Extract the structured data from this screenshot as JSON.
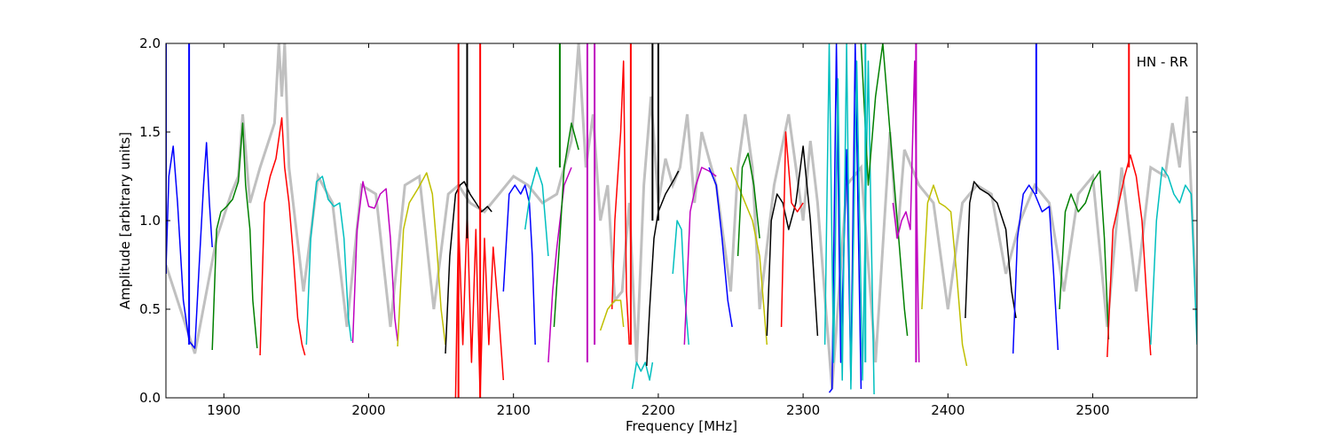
{
  "chart_data": {
    "type": "line",
    "title": "",
    "annotation": "HN - RR",
    "xlabel": "Frequency [MHz]",
    "ylabel": "Amplitude [arbitrary units]",
    "xlim": [
      1860,
      2572
    ],
    "ylim": [
      0.0,
      2.0
    ],
    "xticks": [
      1900,
      2000,
      2100,
      2200,
      2300,
      2400,
      2500
    ],
    "xtick_labels": [
      "1900",
      "2000",
      "2100",
      "2200",
      "2300",
      "2400",
      "2500"
    ],
    "yticks": [
      0.0,
      0.5,
      1.0,
      1.5,
      2.0
    ],
    "ytick_labels": [
      "0.0",
      "0.5",
      "1.0",
      "1.5",
      "2.0"
    ],
    "grid": false,
    "legend": "none",
    "background_series": {
      "name": "",
      "color": "#c0c0c0",
      "x": [
        1860,
        1880,
        1895,
        1905,
        1910,
        1913,
        1918,
        1925,
        1935,
        1938,
        1940,
        1942,
        1945,
        1955,
        1965,
        1975,
        1985,
        1995,
        2005,
        2015,
        2025,
        2035,
        2045,
        2055,
        2062,
        2070,
        2080,
        2090,
        2100,
        2110,
        2120,
        2130,
        2140,
        2145,
        2150,
        2155,
        2160,
        2165,
        2170,
        2175,
        2180,
        2185,
        2190,
        2195,
        2200,
        2205,
        2210,
        2215,
        2220,
        2225,
        2230,
        2240,
        2250,
        2255,
        2260,
        2265,
        2270,
        2280,
        2290,
        2300,
        2305,
        2310,
        2320,
        2330,
        2340,
        2350,
        2360,
        2365,
        2370,
        2380,
        2390,
        2400,
        2410,
        2420,
        2430,
        2440,
        2450,
        2460,
        2470,
        2480,
        2490,
        2500,
        2510,
        2520,
        2530,
        2540,
        2550,
        2555,
        2560,
        2565,
        2572
      ],
      "y": [
        0.75,
        0.25,
        0.9,
        1.15,
        1.25,
        1.6,
        1.1,
        1.3,
        1.55,
        2.0,
        1.7,
        2.0,
        1.3,
        0.6,
        1.25,
        1.1,
        0.4,
        1.2,
        1.15,
        0.4,
        1.2,
        1.25,
        0.5,
        1.15,
        1.2,
        1.1,
        1.05,
        1.15,
        1.25,
        1.2,
        1.1,
        1.15,
        1.45,
        2.0,
        1.3,
        1.6,
        1.0,
        1.2,
        0.55,
        0.6,
        1.1,
        0.2,
        1.2,
        1.7,
        1.1,
        1.35,
        1.2,
        1.3,
        1.6,
        1.1,
        1.5,
        1.2,
        0.6,
        1.3,
        1.6,
        1.3,
        0.5,
        1.2,
        1.6,
        1.0,
        1.45,
        1.1,
        0.05,
        1.2,
        1.3,
        0.2,
        1.5,
        0.9,
        1.4,
        1.2,
        1.1,
        0.5,
        1.1,
        1.2,
        1.15,
        0.7,
        1.0,
        1.2,
        1.1,
        0.6,
        1.15,
        1.25,
        0.4,
        1.3,
        0.6,
        1.3,
        1.25,
        1.55,
        1.3,
        1.7,
        0.45
      ]
    },
    "series": [
      {
        "name": "",
        "color": "#0000ff",
        "x": [
          1860,
          1862,
          1865,
          1868,
          1872,
          1876,
          1880,
          1883,
          1886,
          1888,
          1890,
          1892
        ],
        "y": [
          0.72,
          1.25,
          1.42,
          1.1,
          0.55,
          0.32,
          0.28,
          0.75,
          1.2,
          1.44,
          1.1,
          0.85
        ]
      },
      {
        "name": "",
        "color": "#008000",
        "x": [
          1892,
          1895,
          1898,
          1902,
          1906,
          1910,
          1913,
          1915,
          1918,
          1920,
          1923
        ],
        "y": [
          0.27,
          0.95,
          1.05,
          1.08,
          1.12,
          1.22,
          1.55,
          1.2,
          0.95,
          0.55,
          0.28
        ]
      },
      {
        "name": "",
        "color": "#ff0000",
        "x": [
          1925,
          1928,
          1932,
          1936,
          1940,
          1942,
          1945,
          1948,
          1951,
          1954,
          1956
        ],
        "y": [
          0.24,
          1.1,
          1.25,
          1.35,
          1.58,
          1.3,
          1.1,
          0.8,
          0.45,
          0.3,
          0.24
        ]
      },
      {
        "name": "",
        "color": "#00bfbf",
        "x": [
          1957,
          1960,
          1964,
          1968,
          1972,
          1976,
          1980,
          1983,
          1986,
          1988
        ],
        "y": [
          0.3,
          0.9,
          1.22,
          1.25,
          1.12,
          1.08,
          1.1,
          0.9,
          0.45,
          0.32
        ]
      },
      {
        "name": "",
        "color": "#bf00bf",
        "x": [
          1989,
          1992,
          1996,
          2000,
          2004,
          2008,
          2012,
          2015,
          2018,
          2020
        ],
        "y": [
          0.31,
          0.95,
          1.22,
          1.08,
          1.07,
          1.15,
          1.18,
          0.9,
          0.45,
          0.32
        ]
      },
      {
        "name": "",
        "color": "#bfbf00",
        "x": [
          2020,
          2024,
          2028,
          2034,
          2040,
          2044,
          2047,
          2050,
          2053
        ],
        "y": [
          0.29,
          0.95,
          1.1,
          1.18,
          1.27,
          1.15,
          0.85,
          0.5,
          0.3
        ]
      },
      {
        "name": "",
        "color": "#000000",
        "x": [
          2053,
          2056,
          2060,
          2063,
          2066,
          2070,
          2074,
          2078,
          2082,
          2085
        ],
        "y": [
          0.25,
          0.8,
          1.15,
          1.2,
          1.22,
          1.15,
          1.1,
          1.05,
          1.08,
          1.05
        ]
      },
      {
        "name": "",
        "color": "#ff0000",
        "x": [
          2060,
          2062,
          2065,
          2068,
          2071,
          2074,
          2077,
          2080,
          2083,
          2086,
          2090,
          2093
        ],
        "y": [
          0.0,
          1.0,
          0.3,
          1.05,
          0.2,
          0.95,
          0.0,
          0.9,
          0.3,
          0.85,
          0.45,
          0.1
        ]
      },
      {
        "name": "",
        "color": "#0000ff",
        "x": [
          2093,
          2097,
          2101,
          2105,
          2108,
          2111,
          2113,
          2115
        ],
        "y": [
          0.6,
          1.15,
          1.2,
          1.15,
          1.2,
          1.1,
          0.8,
          0.3
        ]
      },
      {
        "name": "",
        "color": "#00bfbf",
        "x": [
          2108,
          2112,
          2116,
          2120,
          2124
        ],
        "y": [
          0.95,
          1.18,
          1.3,
          1.2,
          0.8
        ]
      },
      {
        "name": "",
        "color": "#bf00bf",
        "x": [
          2124,
          2127,
          2130,
          2135,
          2140
        ],
        "y": [
          0.2,
          0.6,
          0.85,
          1.2,
          1.3
        ]
      },
      {
        "name": "",
        "color": "#008000",
        "x": [
          2128,
          2132,
          2135,
          2140,
          2145
        ],
        "y": [
          0.4,
          0.9,
          1.3,
          1.55,
          1.4
        ]
      },
      {
        "name": "",
        "color": "#ff0000",
        "x": [
          2168,
          2170,
          2174,
          2176,
          2178,
          2180
        ],
        "y": [
          0.5,
          1.0,
          1.5,
          1.9,
          0.6,
          0.3
        ]
      },
      {
        "name": "",
        "color": "#bfbf00",
        "x": [
          2160,
          2165,
          2170,
          2174,
          2176
        ],
        "y": [
          0.38,
          0.5,
          0.55,
          0.55,
          0.4
        ]
      },
      {
        "name": "",
        "color": "#00bfbf",
        "x": [
          2182,
          2185,
          2188,
          2191,
          2194,
          2196
        ],
        "y": [
          0.05,
          0.2,
          0.15,
          0.2,
          0.1,
          0.2
        ]
      },
      {
        "name": "",
        "color": "#000000",
        "x": [
          2192,
          2194,
          2197,
          2200,
          2205,
          2210,
          2214
        ],
        "y": [
          0.18,
          0.5,
          0.9,
          1.05,
          1.15,
          1.22,
          1.28
        ]
      },
      {
        "name": "",
        "color": "#00bfbf",
        "x": [
          2210,
          2213,
          2216,
          2218,
          2221
        ],
        "y": [
          0.7,
          1.0,
          0.95,
          0.6,
          0.3
        ]
      },
      {
        "name": "",
        "color": "#bf00bf",
        "x": [
          2218,
          2222,
          2226,
          2230,
          2235,
          2240
        ],
        "y": [
          0.3,
          1.05,
          1.2,
          1.3,
          1.28,
          1.25
        ]
      },
      {
        "name": "",
        "color": "#0000ff",
        "x": [
          2235,
          2240,
          2244,
          2248,
          2251
        ],
        "y": [
          1.3,
          1.2,
          0.9,
          0.55,
          0.4
        ]
      },
      {
        "name": "",
        "color": "#bfbf00",
        "x": [
          2250,
          2255,
          2260,
          2265,
          2270,
          2275
        ],
        "y": [
          1.3,
          1.2,
          1.1,
          1.0,
          0.8,
          0.3
        ]
      },
      {
        "name": "",
        "color": "#008000",
        "x": [
          2255,
          2258,
          2262,
          2266,
          2270
        ],
        "y": [
          0.8,
          1.3,
          1.38,
          1.2,
          0.9
        ]
      },
      {
        "name": "",
        "color": "#000000",
        "x": [
          2275,
          2278,
          2282,
          2286,
          2290,
          2295,
          2300,
          2305,
          2310
        ],
        "y": [
          0.35,
          1.0,
          1.15,
          1.1,
          0.95,
          1.1,
          1.42,
          1.0,
          0.35
        ]
      },
      {
        "name": "",
        "color": "#ff0000",
        "x": [
          2285,
          2288,
          2292,
          2296,
          2300
        ],
        "y": [
          0.4,
          1.5,
          1.1,
          1.05,
          1.1
        ]
      },
      {
        "name": "",
        "color": "#0000ff",
        "x": [
          2318,
          2320,
          2323,
          2326,
          2330,
          2333,
          2336,
          2340
        ],
        "y": [
          0.03,
          0.05,
          2.0,
          0.2,
          1.4,
          0.1,
          2.0,
          0.05
        ]
      },
      {
        "name": "",
        "color": "#00bfbf",
        "x": [
          2315,
          2318,
          2321,
          2324,
          2327,
          2330,
          2333,
          2337,
          2341,
          2345,
          2349
        ],
        "y": [
          0.3,
          2.0,
          0.2,
          1.8,
          0.1,
          2.0,
          0.05,
          1.9,
          0.1,
          1.9,
          0.02
        ]
      },
      {
        "name": "",
        "color": "#008000",
        "x": [
          2340,
          2345,
          2350,
          2355,
          2360,
          2365,
          2370,
          2372
        ],
        "y": [
          2.0,
          1.2,
          1.7,
          2.0,
          1.5,
          1.0,
          0.5,
          0.35
        ]
      },
      {
        "name": "",
        "color": "#bf00bf",
        "x": [
          2362,
          2365,
          2368,
          2371,
          2374,
          2377,
          2380
        ],
        "y": [
          1.1,
          0.9,
          1.0,
          1.05,
          0.95,
          1.9,
          0.2
        ]
      },
      {
        "name": "",
        "color": "#bfbf00",
        "x": [
          2382,
          2386,
          2390,
          2394,
          2398,
          2402,
          2406,
          2410,
          2413
        ],
        "y": [
          0.5,
          1.1,
          1.2,
          1.1,
          1.08,
          1.05,
          0.7,
          0.3,
          0.18
        ]
      },
      {
        "name": "",
        "color": "#000000",
        "x": [
          2412,
          2415,
          2418,
          2422,
          2428,
          2434,
          2440,
          2444,
          2447
        ],
        "y": [
          0.45,
          1.1,
          1.22,
          1.18,
          1.15,
          1.1,
          0.95,
          0.6,
          0.45
        ]
      },
      {
        "name": "",
        "color": "#0000ff",
        "x": [
          2445,
          2448,
          2452,
          2456,
          2460,
          2465,
          2470,
          2473,
          2476
        ],
        "y": [
          0.25,
          0.9,
          1.15,
          1.2,
          1.15,
          1.05,
          1.08,
          0.7,
          0.27
        ]
      },
      {
        "name": "",
        "color": "#008000",
        "x": [
          2477,
          2481,
          2485,
          2490,
          2495,
          2500,
          2505,
          2508,
          2511
        ],
        "y": [
          0.5,
          1.05,
          1.15,
          1.05,
          1.1,
          1.22,
          1.28,
          0.9,
          0.33
        ]
      },
      {
        "name": "",
        "color": "#ff0000",
        "x": [
          2510,
          2514,
          2518,
          2522,
          2526,
          2530,
          2534,
          2537,
          2540
        ],
        "y": [
          0.23,
          0.95,
          1.1,
          1.25,
          1.37,
          1.25,
          1.0,
          0.6,
          0.24
        ]
      },
      {
        "name": "",
        "color": "#00bfbf",
        "x": [
          2540,
          2544,
          2548,
          2552,
          2556,
          2560,
          2564,
          2568,
          2572
        ],
        "y": [
          0.3,
          1.0,
          1.3,
          1.25,
          1.15,
          1.1,
          1.2,
          1.15,
          0.3
        ]
      }
    ],
    "spikes": [
      {
        "x": 1860,
        "y_from": 0.7,
        "y_to": 2.0,
        "color": "#0000ff"
      },
      {
        "x": 1876,
        "y_from": 0.3,
        "y_to": 2.0,
        "color": "#0000ff"
      },
      {
        "x": 2062,
        "y_from": 0.0,
        "y_to": 2.0,
        "color": "#ff0000"
      },
      {
        "x": 2068,
        "y_from": 0.9,
        "y_to": 2.0,
        "color": "#000000"
      },
      {
        "x": 2077,
        "y_from": 0.0,
        "y_to": 2.0,
        "color": "#ff0000"
      },
      {
        "x": 2132,
        "y_from": 1.3,
        "y_to": 2.0,
        "color": "#008000"
      },
      {
        "x": 2151,
        "y_from": 0.2,
        "y_to": 2.0,
        "color": "#bf00bf"
      },
      {
        "x": 2156,
        "y_from": 0.3,
        "y_to": 2.0,
        "color": "#bf00bf"
      },
      {
        "x": 2181,
        "y_from": 0.3,
        "y_to": 2.0,
        "color": "#ff0000"
      },
      {
        "x": 2196,
        "y_from": 1.0,
        "y_to": 2.0,
        "color": "#000000"
      },
      {
        "x": 2200,
        "y_from": 1.0,
        "y_to": 2.0,
        "color": "#000000"
      },
      {
        "x": 2343,
        "y_from": 0.2,
        "y_to": 2.0,
        "color": "#00bfbf"
      },
      {
        "x": 2378,
        "y_from": 0.2,
        "y_to": 2.0,
        "color": "#bf00bf"
      },
      {
        "x": 2461,
        "y_from": 1.15,
        "y_to": 2.0,
        "color": "#0000ff"
      },
      {
        "x": 2525,
        "y_from": 1.3,
        "y_to": 2.0,
        "color": "#ff0000"
      }
    ]
  }
}
